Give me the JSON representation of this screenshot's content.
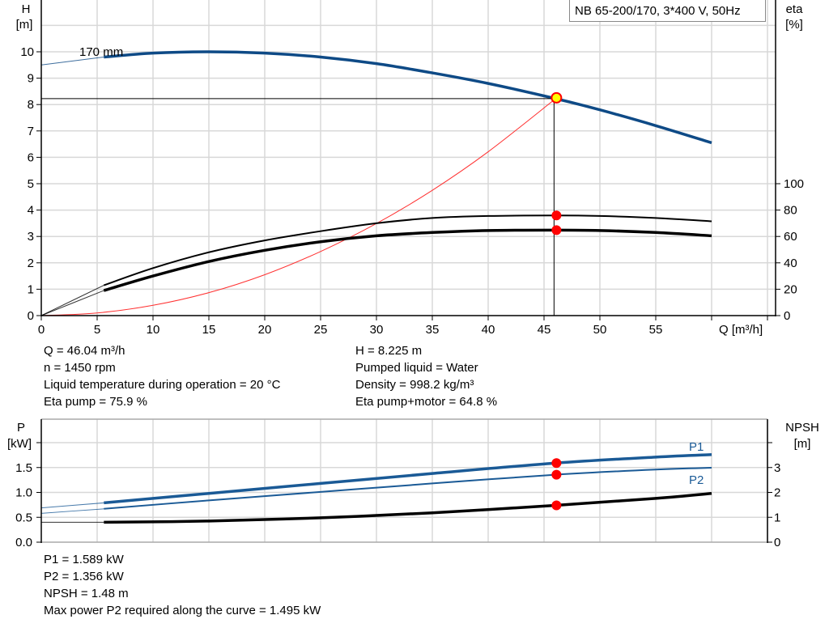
{
  "title": "NB 65-200/170, 3*400 V, 50Hz",
  "colors": {
    "head": "#0e4a86",
    "power": "#1a5a96",
    "efficiency": "#000000",
    "system": "#ff3030",
    "duty_point": "#ffff00",
    "marker": "#ff0000",
    "grid": "#d8d8d8"
  },
  "chart_data": [
    {
      "type": "line",
      "name_label": "170 mm",
      "xlabel": "Q [m³/h]",
      "ylabel_left": [
        "H",
        "[m]"
      ],
      "ylabel_right": [
        "eta",
        "[%]"
      ],
      "xlim": [
        0,
        65
      ],
      "ylim_left": [
        0,
        11
      ],
      "ylim_right_eta": [
        0,
        100
      ],
      "x_ticks": [
        "0",
        "5",
        "10",
        "15",
        "20",
        "25",
        "30",
        "35",
        "40",
        "45",
        "50",
        "55"
      ],
      "y_ticks_left": [
        "0",
        "1",
        "2",
        "3",
        "4",
        "5",
        "6",
        "7",
        "8",
        "9",
        "10"
      ],
      "y_ticks_right": [
        "0",
        "20",
        "40",
        "60",
        "80",
        "100"
      ],
      "grid": true,
      "duty_point": {
        "Q": 46.04,
        "H": 8.225,
        "eta_pump": 75.9,
        "eta_pump_motor": 64.8
      },
      "series": [
        {
          "id": "head",
          "axis": "H",
          "x": [
            0,
            5.6,
            10,
            15,
            20,
            25,
            30,
            35,
            40,
            46.04,
            50,
            55,
            60
          ],
          "y": [
            9.5,
            9.8,
            9.95,
            10.0,
            9.95,
            9.8,
            9.55,
            9.2,
            8.8,
            8.225,
            7.8,
            7.2,
            6.55
          ]
        },
        {
          "id": "eta-pump",
          "axis": "eta",
          "x": [
            0,
            5.6,
            10,
            15,
            20,
            25,
            30,
            35,
            40,
            46.04,
            50,
            55,
            60
          ],
          "y": [
            0,
            23,
            36,
            48,
            57,
            64,
            70,
            74,
            75.5,
            75.9,
            75.5,
            74,
            71.5
          ]
        },
        {
          "id": "eta-pump-motor",
          "axis": "eta",
          "x": [
            0,
            5.6,
            10,
            15,
            20,
            25,
            30,
            35,
            40,
            46.04,
            50,
            55,
            60
          ],
          "y": [
            0,
            19,
            30,
            41,
            49.5,
            56,
            60.5,
            63,
            64.5,
            64.8,
            64.5,
            63,
            60.5
          ]
        },
        {
          "id": "system-curve",
          "axis": "H",
          "x": [
            0,
            5,
            10,
            15,
            20,
            25,
            30,
            35,
            40,
            46.04
          ],
          "y": [
            0,
            0.1,
            0.39,
            0.87,
            1.55,
            2.43,
            3.49,
            4.75,
            6.21,
            8.225
          ]
        }
      ]
    },
    {
      "type": "line",
      "ylabel_left": [
        "P",
        "[kW]"
      ],
      "ylabel_right": [
        "NPSH",
        "[m]"
      ],
      "xlim": [
        0,
        65
      ],
      "ylim_left": [
        0,
        2.0
      ],
      "ylim_right": [
        0,
        4
      ],
      "y_ticks_left": [
        "0.0",
        "0.5",
        "1.0",
        "1.5"
      ],
      "y_ticks_right": [
        "0",
        "1",
        "2",
        "3"
      ],
      "grid": true,
      "series": [
        {
          "id": "p1",
          "name": "P1",
          "axis": "P",
          "x": [
            0,
            5.6,
            15,
            25,
            35,
            46.04,
            55,
            60
          ],
          "y": [
            0.69,
            0.79,
            0.98,
            1.18,
            1.38,
            1.589,
            1.71,
            1.76
          ]
        },
        {
          "id": "p2",
          "name": "P2",
          "axis": "P",
          "x": [
            0,
            5.6,
            15,
            25,
            35,
            46.04,
            55,
            60
          ],
          "y": [
            0.58,
            0.67,
            0.84,
            1.01,
            1.18,
            1.356,
            1.46,
            1.495
          ]
        },
        {
          "id": "npsh",
          "axis": "NPSH",
          "x": [
            0,
            5.6,
            15,
            25,
            35,
            46.04,
            55,
            60
          ],
          "y": [
            0.8,
            0.8,
            0.85,
            0.98,
            1.18,
            1.48,
            1.76,
            1.96
          ]
        }
      ],
      "duty_point": {
        "P1": 1.589,
        "P2": 1.356,
        "NPSH": 1.48
      }
    }
  ],
  "info_top_left": [
    "Q = 46.04 m³/h",
    "n = 1450 rpm",
    "Liquid temperature during operation = 20 °C",
    "Eta pump = 75.9 %"
  ],
  "info_top_right": [
    "H = 8.225 m",
    "Pumped liquid = Water",
    "Density = 998.2 kg/m³",
    "Eta pump+motor = 64.8 %"
  ],
  "info_bottom": [
    "P1 = 1.589 kW",
    "P2 = 1.356 kW",
    "NPSH = 1.48 m",
    "Max power P2 required along the curve = 1.495 kW"
  ]
}
